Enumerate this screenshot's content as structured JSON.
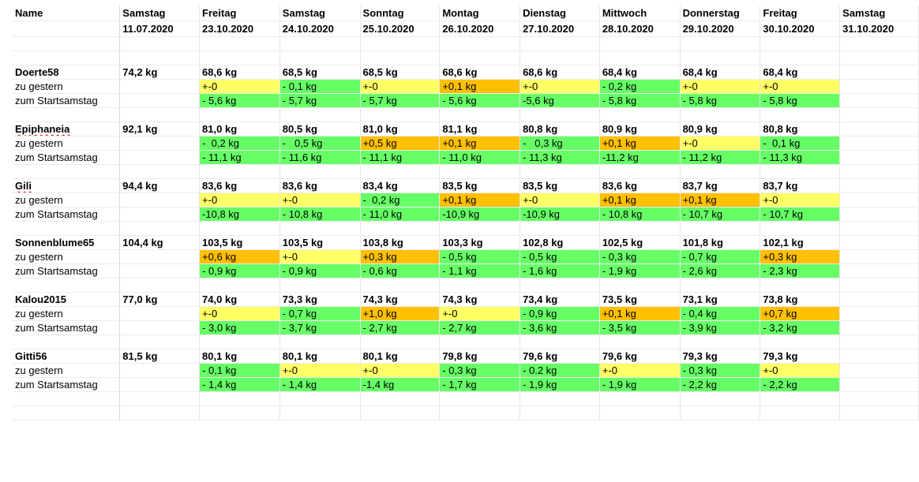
{
  "header": {
    "name_label": "Name",
    "columns": [
      {
        "day": "Samstag",
        "date": "11.07.2020"
      },
      {
        "day": "Freitag",
        "date": "23.10.2020"
      },
      {
        "day": "Samstag",
        "date": "24.10.2020"
      },
      {
        "day": "Sonntag",
        "date": "25.10.2020"
      },
      {
        "day": "Montag",
        "date": "26.10.2020"
      },
      {
        "day": "Dienstag",
        "date": "27.10.2020"
      },
      {
        "day": "Mittwoch",
        "date": "28.10.2020"
      },
      {
        "day": "Donnerstag",
        "date": "29.10.2020"
      },
      {
        "day": "Freitag",
        "date": "30.10.2020"
      },
      {
        "day": "Samstag",
        "date": "31.10.2020"
      }
    ]
  },
  "row_labels": {
    "diff_day": "zu gestern",
    "diff_start": "zum Startsamstag"
  },
  "colors": {
    "green": "#66ff66",
    "yellow": "#ffff66",
    "orange": "#ffc000"
  },
  "people": [
    {
      "name": "Doerte58",
      "start": "74,2 kg",
      "weights": [
        "68,6 kg",
        "68,5 kg",
        "68,5 kg",
        "68,6 kg",
        "68,6 kg",
        "68,4 kg",
        "68,4 kg",
        "68,4 kg"
      ],
      "day_diff": [
        {
          "t": "+-0",
          "c": "y"
        },
        {
          "t": "- 0,1 kg",
          "c": "g"
        },
        {
          "t": "+-0",
          "c": "y"
        },
        {
          "t": "+0,1 kg",
          "c": "o"
        },
        {
          "t": "+-0",
          "c": "y"
        },
        {
          "t": "- 0,2 kg",
          "c": "g"
        },
        {
          "t": "+-0",
          "c": "y"
        },
        {
          "t": "+-0",
          "c": "y"
        }
      ],
      "start_diff": [
        "- 5,6 kg",
        "- 5,7 kg",
        "- 5,7 kg",
        "- 5,6 kg",
        "-5,6 kg",
        "- 5,8 kg",
        "- 5,8 kg",
        "- 5,8 kg"
      ]
    },
    {
      "name": "Epiphaneia",
      "start": "92,1 kg",
      "weights": [
        "81,0 kg",
        "80,5 kg",
        "81,0 kg",
        "81,1 kg",
        "80,8 kg",
        "80,9 kg",
        "80,9 kg",
        "80,8 kg"
      ],
      "day_diff": [
        {
          "t": "-  0,2 kg",
          "c": "g"
        },
        {
          "t": "-   0,5 kg",
          "c": "g"
        },
        {
          "t": "+0,5 kg",
          "c": "o"
        },
        {
          "t": "+0,1 kg",
          "c": "o"
        },
        {
          "t": "-   0,3 kg",
          "c": "g"
        },
        {
          "t": "+0,1 kg",
          "c": "o"
        },
        {
          "t": "+-0",
          "c": "y"
        },
        {
          "t": "-  0,1 kg",
          "c": "g"
        }
      ],
      "start_diff": [
        "- 11,1 kg",
        "- 11,6 kg",
        "- 11,1 kg",
        "- 11,0 kg",
        "- 11,3 kg",
        "-11,2 kg",
        "- 11,2 kg",
        "- 11,3 kg"
      ]
    },
    {
      "name": "Gili",
      "start": "94,4 kg",
      "weights": [
        "83,6 kg",
        "83,6 kg",
        "83,4 kg",
        "83,5 kg",
        "83,5 kg",
        "83,6 kg",
        "83,7 kg",
        "83,7 kg"
      ],
      "day_diff": [
        {
          "t": "+-0",
          "c": "y"
        },
        {
          "t": "+-0",
          "c": "y"
        },
        {
          "t": "-  0,2 kg",
          "c": "g"
        },
        {
          "t": "+0,1 kg",
          "c": "o"
        },
        {
          "t": "+-0",
          "c": "y"
        },
        {
          "t": "+0,1 kg",
          "c": "o"
        },
        {
          "t": "+0,1 kg",
          "c": "o"
        },
        {
          "t": "+-0",
          "c": "y"
        }
      ],
      "start_diff": [
        "-10,8 kg",
        "- 10,8 kg",
        "- 11,0 kg",
        "-10,9 kg",
        "-10,9 kg",
        "- 10,8 kg",
        "- 10,7 kg",
        "- 10,7 kg"
      ]
    },
    {
      "name": "Sonnenblume65",
      "start": "104,4 kg",
      "weights": [
        "103,5 kg",
        "103,5 kg",
        "103,8 kg",
        "103,3 kg",
        "102,8 kg",
        "102,5 kg",
        "101,8 kg",
        "102,1 kg"
      ],
      "day_diff": [
        {
          "t": "+0,6 kg",
          "c": "o"
        },
        {
          "t": "+-0",
          "c": "y"
        },
        {
          "t": "+0,3 kg",
          "c": "o"
        },
        {
          "t": "- 0,5 kg",
          "c": "g"
        },
        {
          "t": "- 0,5 kg",
          "c": "g"
        },
        {
          "t": "- 0,3 kg",
          "c": "g"
        },
        {
          "t": "- 0,7 kg",
          "c": "g"
        },
        {
          "t": "+0,3 kg",
          "c": "o"
        }
      ],
      "start_diff": [
        "- 0,9 kg",
        "- 0,9 kg",
        "- 0,6 kg",
        "- 1,1 kg",
        "- 1,6 kg",
        "- 1,9 kg",
        "- 2,6 kg",
        "- 2,3 kg"
      ]
    },
    {
      "name": "Kalou2015",
      "start": "77,0 kg",
      "weights": [
        "74,0 kg",
        "73,3 kg",
        "74,3 kg",
        "74,3 kg",
        "73,4 kg",
        "73,5 kg",
        "73,1 kg",
        "73,8 kg"
      ],
      "day_diff": [
        {
          "t": "+-0",
          "c": "y"
        },
        {
          "t": "- 0,7 kg",
          "c": "g"
        },
        {
          "t": "+1,0 kg",
          "c": "o"
        },
        {
          "t": "+-0",
          "c": "y"
        },
        {
          "t": "- 0,9 kg",
          "c": "g"
        },
        {
          "t": "+0,1 kg",
          "c": "o"
        },
        {
          "t": "- 0,4 kg",
          "c": "g"
        },
        {
          "t": "+0,7 kg",
          "c": "o"
        }
      ],
      "start_diff": [
        "- 3,0 kg",
        "- 3,7 kg",
        "- 2,7 kg",
        "- 2,7 kg",
        "- 3,6 kg",
        "- 3,5 kg",
        "- 3,9 kg",
        "- 3,2 kg"
      ]
    },
    {
      "name": "Gitti56",
      "start": "81,5 kg",
      "weights": [
        "80,1 kg",
        "80,1 kg",
        "80,1 kg",
        "79,8 kg",
        "79,6 kg",
        "79,6 kg",
        "79,3 kg",
        "79,3 kg"
      ],
      "day_diff": [
        {
          "t": "- 0,1 kg",
          "c": "g"
        },
        {
          "t": "+-0",
          "c": "y"
        },
        {
          "t": "+-0",
          "c": "y"
        },
        {
          "t": "- 0,3 kg",
          "c": "g"
        },
        {
          "t": "- 0.2 kg",
          "c": "g"
        },
        {
          "t": "+-0",
          "c": "y"
        },
        {
          "t": "- 0,3 kg",
          "c": "g"
        },
        {
          "t": "+-0",
          "c": "y"
        }
      ],
      "start_diff": [
        "- 1,4 kg",
        "- 1,4 kg",
        "-1,4 kg",
        "- 1,7 kg",
        "- 1,9 kg",
        "- 1,9 kg",
        "- 2,2 kg",
        "- 2,2 kg"
      ]
    }
  ]
}
